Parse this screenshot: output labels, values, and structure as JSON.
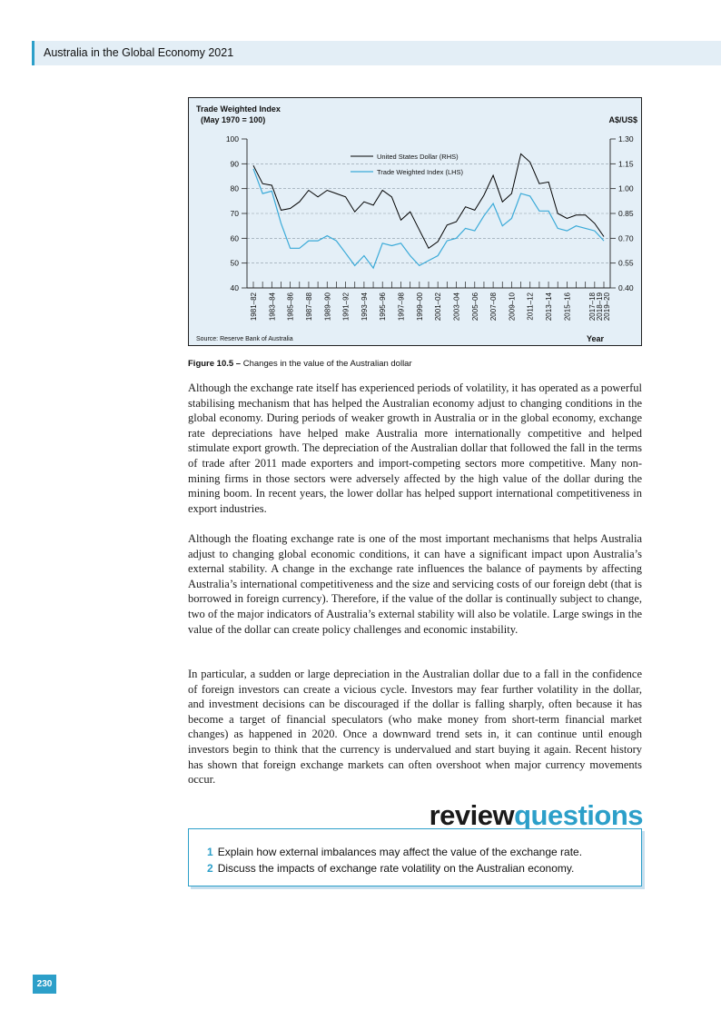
{
  "header": {
    "title": "Australia in the Global Economy 2021"
  },
  "colors": {
    "accent": "#2c9fc9",
    "usd_line": "#000000",
    "twi_line": "#3aaad8",
    "chart_bg": "#e4eff7"
  },
  "chart_data": {
    "type": "line",
    "title_left_line1": "Trade Weighted Index",
    "title_left_line2": "(May 1970 = 100)",
    "right_axis_label": "A$/US$",
    "xlabel": "Year",
    "source": "Source: Reserve Bank of Australia",
    "left_ylim": [
      40,
      100
    ],
    "left_ticks": [
      "40",
      "50",
      "60",
      "70",
      "80",
      "90",
      "100"
    ],
    "right_ylim": [
      0.4,
      1.3
    ],
    "right_ticks": [
      "0.40",
      "0.55",
      "0.70",
      "0.85",
      "1.00",
      "1.15",
      "1.30"
    ],
    "categories": [
      "1981–82",
      "1983–84",
      "1985–86",
      "1987–88",
      "1989–90",
      "1991–92",
      "1993–94",
      "1995–96",
      "1997–98",
      "1999–00",
      "2001–02",
      "2003–04",
      "2005–06",
      "2007–08",
      "2009–10",
      "2011–12",
      "2013–14",
      "2015–16",
      "2017–18",
      "2018–19",
      "2019–20"
    ],
    "grid": "dashed horizontal",
    "legend_position": "top-center",
    "series": [
      {
        "name": "United States Dollar (RHS)",
        "axis": "right",
        "x": [
          1981,
          1982,
          1983,
          1984,
          1985,
          1986,
          1987,
          1988,
          1989,
          1990,
          1991,
          1992,
          1993,
          1994,
          1995,
          1996,
          1997,
          1998,
          1999,
          2000,
          2001,
          2002,
          2003,
          2004,
          2005,
          2006,
          2007,
          2008,
          2009,
          2010,
          2011,
          2012,
          2013,
          2014,
          2015,
          2016,
          2017,
          2018,
          2019
        ],
        "values": [
          1.14,
          1.03,
          1.02,
          0.87,
          0.88,
          0.92,
          0.99,
          0.95,
          0.99,
          0.97,
          0.95,
          0.86,
          0.92,
          0.9,
          0.99,
          0.95,
          0.81,
          0.86,
          0.75,
          0.64,
          0.68,
          0.78,
          0.8,
          0.89,
          0.87,
          0.96,
          1.08,
          0.92,
          0.97,
          1.21,
          1.16,
          1.03,
          1.04,
          0.85,
          0.82,
          0.84,
          0.84,
          0.79,
          0.71
        ]
      },
      {
        "name": "Trade Weighted Index (LHS)",
        "axis": "left",
        "x": [
          1981,
          1982,
          1983,
          1984,
          1985,
          1986,
          1987,
          1988,
          1989,
          1990,
          1991,
          1992,
          1993,
          1994,
          1995,
          1996,
          1997,
          1998,
          1999,
          2000,
          2001,
          2002,
          2003,
          2004,
          2005,
          2006,
          2007,
          2008,
          2009,
          2010,
          2011,
          2012,
          2013,
          2014,
          2015,
          2016,
          2017,
          2018,
          2019
        ],
        "values": [
          88,
          78,
          79,
          66,
          56,
          56,
          59,
          59,
          61,
          59,
          54,
          49,
          53,
          48,
          58,
          57,
          58,
          53,
          49,
          51,
          53,
          59,
          60,
          64,
          63,
          69,
          74,
          65,
          68,
          78,
          77,
          71,
          71,
          64,
          63,
          65,
          64,
          63,
          59
        ]
      }
    ]
  },
  "figure_caption": {
    "label": "Figure 10.5 –",
    "text": " Changes in the value of the Australian dollar"
  },
  "paragraphs": [
    "Although the exchange rate itself has experienced periods of volatility, it has operated as a powerful stabilising mechanism that has helped the Australian economy adjust to changing conditions in the global economy. During periods of weaker growth in Australia or in the global economy, exchange rate depreciations have helped make Australia more internationally competitive and helped stimulate export growth. The depreciation of the Australian dollar that followed the fall in the terms of trade after 2011 made exporters and import-competing sectors more competitive. Many non-mining firms in those sectors were adversely affected by the high value of the dollar during the mining boom. In recent years, the lower dollar has helped support international competitiveness in export industries.",
    "Although the floating exchange rate is one of the most important mechanisms that helps Australia adjust to changing global economic conditions, it can have a significant impact upon Australia’s external stability. A change in the exchange rate influences the balance of payments by affecting Australia’s international competitiveness and the size and servicing costs of our foreign debt (that is borrowed in foreign currency). Therefore, if the value of the dollar is continually subject to change, two of the major indicators of Australia’s external stability will also be volatile. Large swings in the value of the dollar can create policy challenges and economic instability.",
    "In particular, a sudden or large depreciation in the Australian dollar due to a fall in the confidence of foreign investors can create a vicious cycle. Investors may fear further volatility in the dollar, and investment decisions can be discouraged if the dollar is falling sharply, often because it has become a target of financial speculators (who make money from short-term financial market changes) as happened in 2020. Once a downward trend sets in, it can continue until enough investors begin to think that the currency is undervalued and start buying it again. Recent history has shown that foreign exchange markets can often overshoot when major currency movements occur."
  ],
  "review": {
    "heading_part1": "review",
    "heading_part2": "questions",
    "questions": [
      {
        "num": "1",
        "text": "Explain how external imbalances may affect the value of the exchange rate."
      },
      {
        "num": "2",
        "text": "Discuss the impacts of exchange rate volatility on the Australian economy."
      }
    ]
  },
  "page_number": "230"
}
